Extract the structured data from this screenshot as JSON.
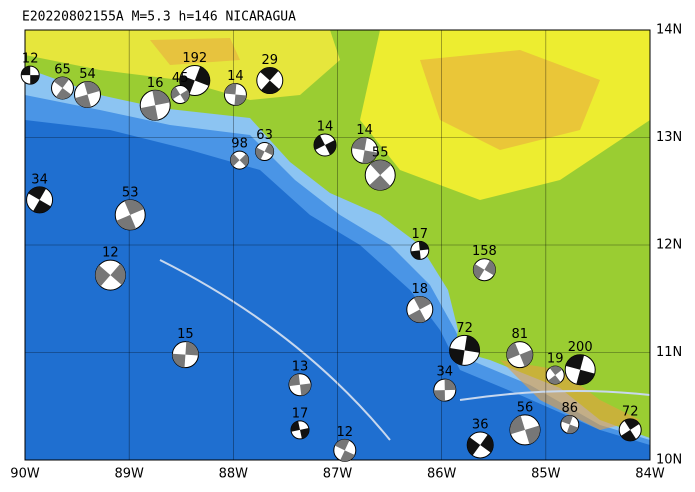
{
  "title": "E20220802155A M=5.3 h=146 NICARAGUA",
  "lon_ticks": [
    {
      "value": -90,
      "label": "90W"
    },
    {
      "value": -89,
      "label": "89W"
    },
    {
      "value": -88,
      "label": "88W"
    },
    {
      "value": -87,
      "label": "87W"
    },
    {
      "value": -86,
      "label": "86W"
    },
    {
      "value": -85,
      "label": "85W"
    },
    {
      "value": -84,
      "label": "84W"
    }
  ],
  "lat_ticks": [
    {
      "value": 10,
      "label": "10N"
    },
    {
      "value": 11,
      "label": "11N"
    },
    {
      "value": 12,
      "label": "12N"
    },
    {
      "value": 13,
      "label": "13N"
    },
    {
      "value": 14,
      "label": "14N"
    }
  ],
  "lon_range": [
    -90,
    -84
  ],
  "lat_range": [
    10,
    14
  ],
  "events": [
    {
      "lon": -89.95,
      "lat": 13.58,
      "depth": "12"
    },
    {
      "lon": -89.64,
      "lat": 13.46,
      "depth": "65"
    },
    {
      "lon": -89.4,
      "lat": 13.4,
      "depth": "54"
    },
    {
      "lon": -88.37,
      "lat": 13.53,
      "depth": "192"
    },
    {
      "lon": -88.51,
      "lat": 13.4,
      "depth": "45"
    },
    {
      "lon": -87.98,
      "lat": 13.4,
      "depth": "14"
    },
    {
      "lon": -87.65,
      "lat": 13.53,
      "depth": "29"
    },
    {
      "lon": -88.75,
      "lat": 13.3,
      "depth": "16"
    },
    {
      "lon": -87.7,
      "lat": 12.87,
      "depth": "63"
    },
    {
      "lon": -87.12,
      "lat": 12.93,
      "depth": "14"
    },
    {
      "lon": -86.74,
      "lat": 12.88,
      "depth": "14"
    },
    {
      "lon": -86.59,
      "lat": 12.65,
      "depth": "55"
    },
    {
      "lon": -86.21,
      "lat": 11.95,
      "depth": "17"
    },
    {
      "lon": -85.59,
      "lat": 11.77,
      "depth": "158"
    },
    {
      "lon": -85.25,
      "lat": 10.98,
      "depth": "81"
    },
    {
      "lon": -84.67,
      "lat": 10.84,
      "depth": "200"
    },
    {
      "lon": -84.91,
      "lat": 10.79,
      "depth": "19"
    },
    {
      "lon": -85.97,
      "lat": 10.65,
      "depth": "34"
    },
    {
      "lon": -85.63,
      "lat": 10.14,
      "depth": "36"
    },
    {
      "lon": -85.2,
      "lat": 10.28,
      "depth": "56"
    },
    {
      "lon": -84.77,
      "lat": 10.33,
      "depth": "86"
    },
    {
      "lon": -84.19,
      "lat": 10.28,
      "depth": "72"
    },
    {
      "lon": -88.46,
      "lat": 10.98,
      "depth": "15"
    },
    {
      "lon": -89.18,
      "lat": 11.72,
      "depth": "12"
    },
    {
      "lon": -87.36,
      "lat": 10.28,
      "depth": "17"
    },
    {
      "lon": -86.93,
      "lat": 10.09,
      "depth": "12"
    },
    {
      "lon": -86.21,
      "lat": 11.4,
      "depth": "18"
    },
    {
      "lon": -85.78,
      "lat": 11.02,
      "depth": "72"
    },
    {
      "lon": -87.94,
      "lat": 12.79,
      "depth": "98"
    },
    {
      "lon": -87.36,
      "lat": 10.7,
      "depth": "13"
    },
    {
      "lon": -89.86,
      "lat": 12.42,
      "depth": "34"
    },
    {
      "lon": -88.99,
      "lat": 12.28,
      "depth": "53"
    }
  ]
}
